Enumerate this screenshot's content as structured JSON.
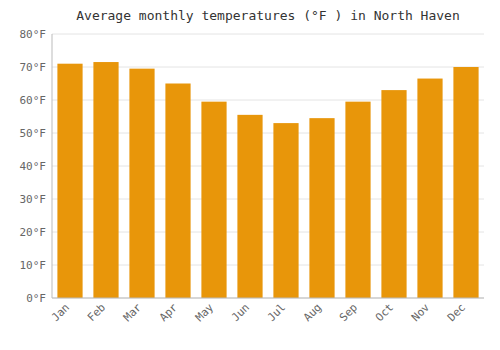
{
  "chart_data": {
    "type": "bar",
    "title": "Average monthly temperatures (°F ) in North Haven",
    "categories": [
      "Jan",
      "Feb",
      "Mar",
      "Apr",
      "May",
      "Jun",
      "Jul",
      "Aug",
      "Sep",
      "Oct",
      "Nov",
      "Dec"
    ],
    "values": [
      71,
      71.5,
      69.5,
      65,
      59.5,
      55.5,
      53,
      54.5,
      59.5,
      63,
      66.5,
      70
    ],
    "color": "#E8960A",
    "ylim": [
      0,
      80
    ],
    "yticks": [
      {
        "value": 0,
        "label": "0°F"
      },
      {
        "value": 10,
        "label": "10°F"
      },
      {
        "value": 20,
        "label": "20°F"
      },
      {
        "value": 30,
        "label": "30°F"
      },
      {
        "value": 40,
        "label": "40°F"
      },
      {
        "value": 50,
        "label": "50°F"
      },
      {
        "value": 60,
        "label": "60°F"
      },
      {
        "value": 70,
        "label": "70°F"
      },
      {
        "value": 80,
        "label": "80°F"
      }
    ],
    "grid": true
  }
}
